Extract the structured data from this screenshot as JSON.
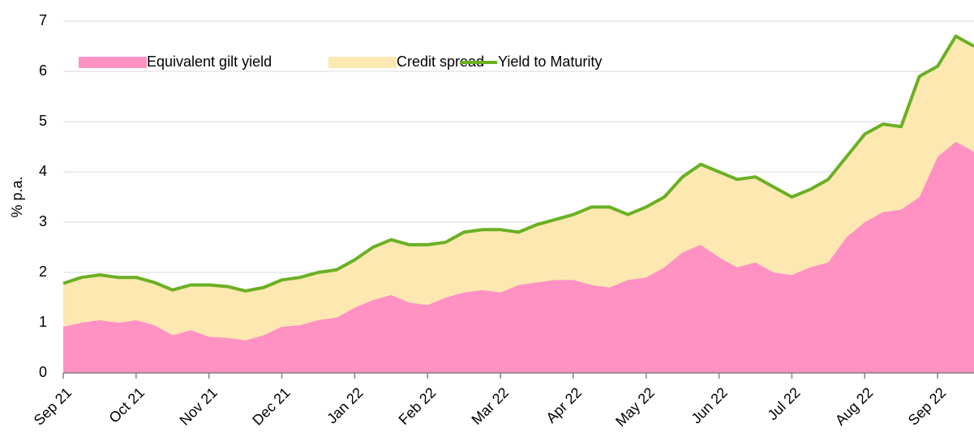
{
  "chart_data": {
    "type": "stacked_area_line",
    "y_label": "% p.a.",
    "categories": [
      "Sep 21",
      null,
      null,
      null,
      "Oct 21",
      null,
      null,
      null,
      "Nov 21",
      null,
      null,
      null,
      "Dec 21",
      null,
      null,
      null,
      "Jan 22",
      null,
      null,
      null,
      "Feb 22",
      null,
      null,
      null,
      "Mar 22",
      null,
      null,
      null,
      "Apr 22",
      null,
      null,
      null,
      "May 22",
      null,
      null,
      null,
      "Jun 22",
      null,
      null,
      null,
      "Jul 22",
      null,
      null,
      null,
      "Aug 22",
      null,
      null,
      null,
      "Sep 22",
      null,
      null
    ],
    "series": [
      {
        "name": "Equivalent gilt yield",
        "color": "#ff92c2",
        "kind": "area",
        "values": [
          0.92,
          1.0,
          1.05,
          1.0,
          1.05,
          0.95,
          0.75,
          0.85,
          0.72,
          0.7,
          0.65,
          0.75,
          0.92,
          0.95,
          1.05,
          1.1,
          1.3,
          1.45,
          1.55,
          1.4,
          1.35,
          1.5,
          1.6,
          1.65,
          1.6,
          1.75,
          1.8,
          1.85,
          1.85,
          1.75,
          1.7,
          1.85,
          1.9,
          2.1,
          2.4,
          2.55,
          2.3,
          2.1,
          2.2,
          2.0,
          1.95,
          2.1,
          2.2,
          2.7,
          3.0,
          3.2,
          3.25,
          3.5,
          4.3,
          4.6,
          4.4
        ]
      },
      {
        "name": "Credit spread",
        "color": "#fce8b0",
        "kind": "area",
        "values": [
          0.86,
          0.9,
          0.9,
          0.9,
          0.85,
          0.85,
          0.9,
          0.9,
          1.03,
          1.02,
          0.98,
          0.95,
          0.93,
          0.95,
          0.95,
          0.95,
          0.95,
          1.05,
          1.1,
          1.15,
          1.2,
          1.1,
          1.2,
          1.2,
          1.25,
          1.05,
          1.15,
          1.2,
          1.3,
          1.55,
          1.6,
          1.3,
          1.4,
          1.4,
          1.5,
          1.6,
          1.7,
          1.75,
          1.7,
          1.7,
          1.55,
          1.55,
          1.65,
          1.6,
          1.75,
          1.75,
          1.65,
          2.4,
          1.8,
          2.1,
          2.1
        ]
      },
      {
        "name": "Yield to Maturity",
        "color": "#6ab023",
        "kind": "line",
        "values": [
          1.78,
          1.9,
          1.95,
          1.9,
          1.9,
          1.8,
          1.65,
          1.75,
          1.75,
          1.72,
          1.63,
          1.7,
          1.85,
          1.9,
          2.0,
          2.05,
          2.25,
          2.5,
          2.65,
          2.55,
          2.55,
          2.6,
          2.8,
          2.85,
          2.85,
          2.8,
          2.95,
          3.05,
          3.15,
          3.3,
          3.3,
          3.15,
          3.3,
          3.5,
          3.9,
          4.15,
          4.0,
          3.85,
          3.9,
          3.7,
          3.5,
          3.65,
          3.85,
          4.3,
          4.75,
          4.95,
          4.9,
          5.9,
          6.1,
          6.7,
          6.5
        ]
      }
    ],
    "ylim": [
      0,
      7
    ],
    "yticks": [
      0,
      1,
      2,
      3,
      4,
      5,
      6,
      7
    ],
    "grid": true,
    "legend": "upper left"
  }
}
